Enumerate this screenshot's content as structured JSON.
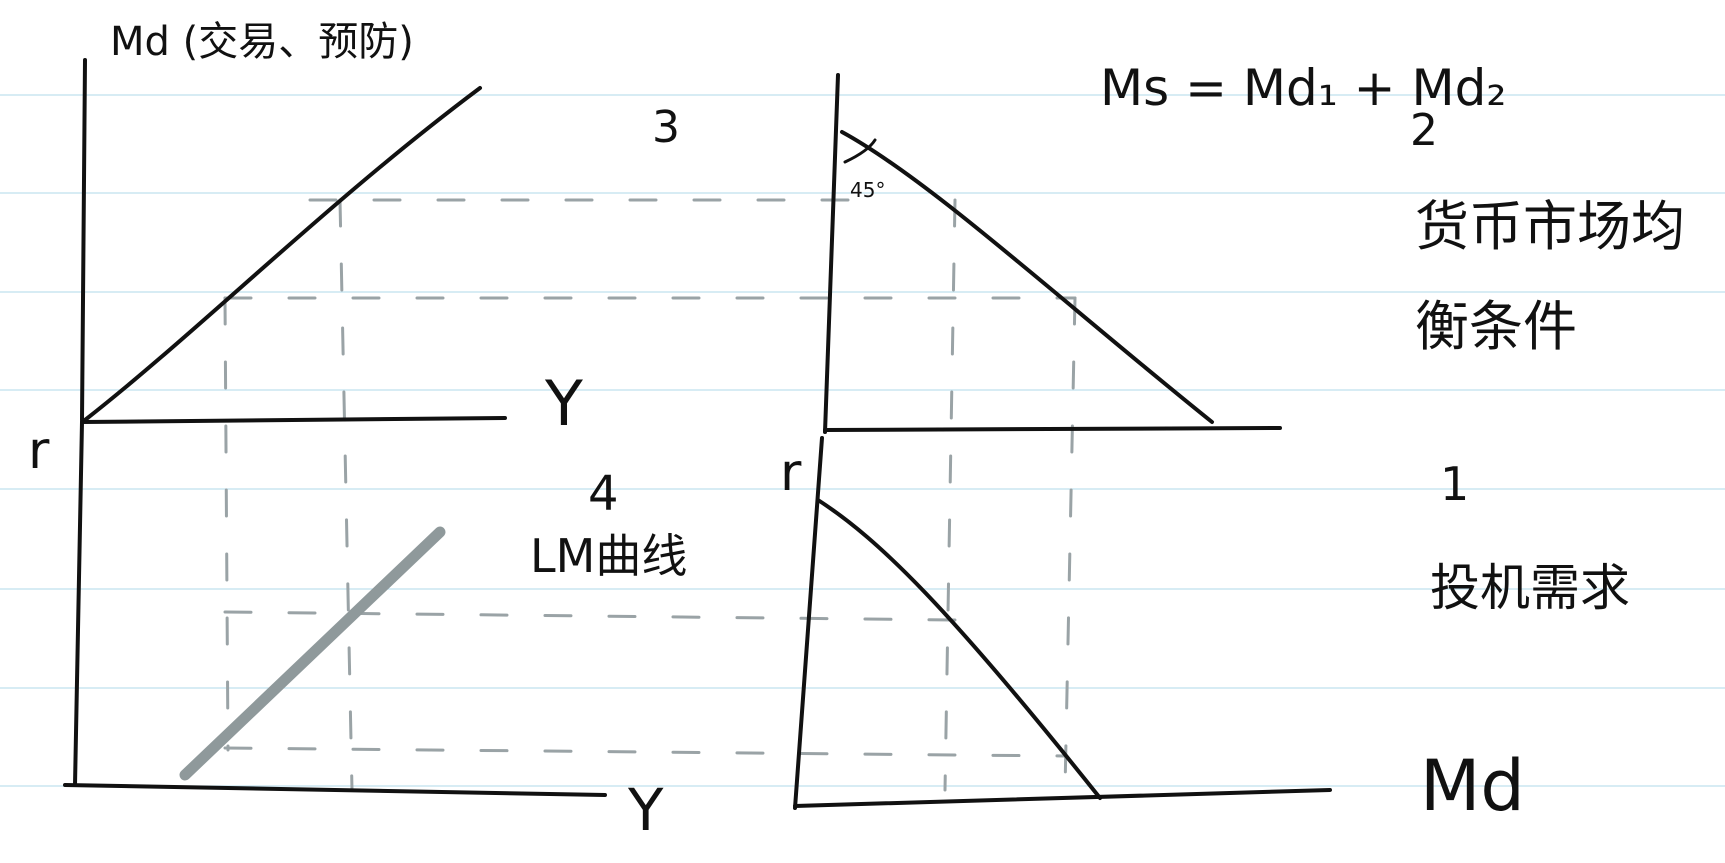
{
  "labels": {
    "md_top": "Md (交易、预防)",
    "y_axis_right": "Y",
    "r_left": "r",
    "quadrant_3": "3",
    "equation": "Ms = Md₁ + Md₂",
    "quadrant_2": "2",
    "angle": "45°",
    "condition_line1": "货币市场均",
    "condition_line2": "衡条件",
    "quadrant_4": "4",
    "lm_curve": "LM曲线",
    "r_mid": "r",
    "quadrant_1": "1",
    "speculative_demand": "投机需求",
    "y_axis_bottom": "Y",
    "md_bottom": "Md"
  },
  "colors": {
    "ink": "#111111",
    "dashed_guide": "#9aa3a6",
    "lm_line": "#8f999b",
    "ruled_line": "#bfe0ee"
  }
}
